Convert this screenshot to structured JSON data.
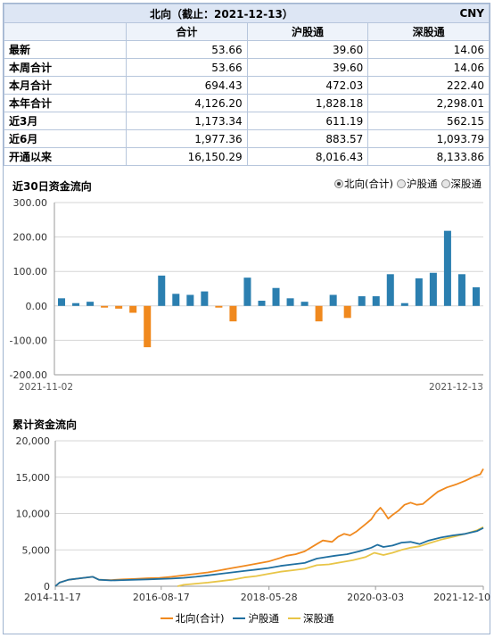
{
  "summary": {
    "title": "北向（截止：2021-12-13）",
    "currency": "CNY",
    "columns": [
      "合计",
      "沪股通",
      "深股通"
    ],
    "rows": [
      {
        "label": "最新",
        "values": [
          "53.66",
          "39.60",
          "14.06"
        ]
      },
      {
        "label": "本周合计",
        "values": [
          "53.66",
          "39.60",
          "14.06"
        ]
      },
      {
        "label": "本月合计",
        "values": [
          "694.43",
          "472.03",
          "222.40"
        ]
      },
      {
        "label": "本年合计",
        "values": [
          "4,126.20",
          "1,828.18",
          "2,298.01"
        ]
      },
      {
        "label": "近3月",
        "values": [
          "1,173.34",
          "611.19",
          "562.15"
        ]
      },
      {
        "label": "近6月",
        "values": [
          "1,977.36",
          "883.57",
          "1,093.79"
        ]
      },
      {
        "label": "开通以来",
        "values": [
          "16,150.29",
          "8,016.43",
          "8,133.86"
        ]
      }
    ]
  },
  "flow30": {
    "title": "近30日资金流向",
    "options": [
      {
        "label": "北向(合计)",
        "selected": true
      },
      {
        "label": "沪股通",
        "selected": false
      },
      {
        "label": "深股通",
        "selected": false
      }
    ]
  },
  "cumulative": {
    "title": "累计资金流向"
  },
  "chart_data": [
    {
      "type": "bar",
      "title": "近30日资金流向",
      "ylim": [
        -200,
        300
      ],
      "yticks": [
        "300.00",
        "200.00",
        "100.00",
        "0.00",
        "-100.00",
        "-200.00"
      ],
      "x_start_label": "2021-11-02",
      "x_end_label": "2021-12-13",
      "colors": {
        "positive": "#2b7fb0",
        "negative": "#f0891e"
      },
      "values": [
        22,
        8,
        12,
        -5,
        -8,
        -20,
        -120,
        88,
        35,
        32,
        42,
        -5,
        -45,
        82,
        15,
        52,
        22,
        12,
        -45,
        32,
        -35,
        28,
        28,
        92,
        8,
        80,
        96,
        218,
        92,
        54
      ]
    },
    {
      "type": "line",
      "title": "累计资金流向",
      "ylim": [
        0,
        20000
      ],
      "yticks": [
        "20,000",
        "15,000",
        "10,000",
        "5,000",
        "0"
      ],
      "xlim": [
        2014.88,
        2021.95
      ],
      "xticks": [
        {
          "label": "2014-11-17",
          "x": 2014.88
        },
        {
          "label": "2016-08-17",
          "x": 2016.63
        },
        {
          "label": "2018-05-28",
          "x": 2018.41
        },
        {
          "label": "2020-03-03",
          "x": 2020.17
        },
        {
          "label": "2021-12-10",
          "x": 2021.95
        }
      ],
      "series": [
        {
          "name": "北向(合计)",
          "color": "#f0891e",
          "points": [
            [
              2014.88,
              0
            ],
            [
              2014.95,
              500
            ],
            [
              2015.1,
              900
            ],
            [
              2015.3,
              1100
            ],
            [
              2015.5,
              1300
            ],
            [
              2015.6,
              900
            ],
            [
              2015.8,
              850
            ],
            [
              2016.0,
              950
            ],
            [
              2016.2,
              1000
            ],
            [
              2016.4,
              1100
            ],
            [
              2016.6,
              1150
            ],
            [
              2016.8,
              1300
            ],
            [
              2017.0,
              1500
            ],
            [
              2017.2,
              1700
            ],
            [
              2017.4,
              1900
            ],
            [
              2017.6,
              2200
            ],
            [
              2017.8,
              2500
            ],
            [
              2018.0,
              2800
            ],
            [
              2018.2,
              3100
            ],
            [
              2018.4,
              3400
            ],
            [
              2018.6,
              3900
            ],
            [
              2018.7,
              4200
            ],
            [
              2018.85,
              4400
            ],
            [
              2019.0,
              4800
            ],
            [
              2019.2,
              5800
            ],
            [
              2019.3,
              6300
            ],
            [
              2019.45,
              6100
            ],
            [
              2019.55,
              6800
            ],
            [
              2019.65,
              7200
            ],
            [
              2019.75,
              7000
            ],
            [
              2019.85,
              7500
            ],
            [
              2020.0,
              8500
            ],
            [
              2020.1,
              9200
            ],
            [
              2020.17,
              10100
            ],
            [
              2020.25,
              10800
            ],
            [
              2020.3,
              10300
            ],
            [
              2020.38,
              9300
            ],
            [
              2020.45,
              9800
            ],
            [
              2020.55,
              10400
            ],
            [
              2020.65,
              11200
            ],
            [
              2020.75,
              11500
            ],
            [
              2020.85,
              11200
            ],
            [
              2020.95,
              11300
            ],
            [
              2021.05,
              12000
            ],
            [
              2021.2,
              13000
            ],
            [
              2021.35,
              13600
            ],
            [
              2021.5,
              14000
            ],
            [
              2021.65,
              14500
            ],
            [
              2021.8,
              15100
            ],
            [
              2021.9,
              15400
            ],
            [
              2021.95,
              16150
            ]
          ]
        },
        {
          "name": "沪股通",
          "color": "#1f6fa0",
          "points": [
            [
              2014.88,
              0
            ],
            [
              2014.95,
              500
            ],
            [
              2015.1,
              900
            ],
            [
              2015.3,
              1100
            ],
            [
              2015.5,
              1300
            ],
            [
              2015.6,
              900
            ],
            [
              2015.8,
              800
            ],
            [
              2016.0,
              850
            ],
            [
              2016.2,
              900
            ],
            [
              2016.4,
              950
            ],
            [
              2016.6,
              1000
            ],
            [
              2016.8,
              1050
            ],
            [
              2017.0,
              1150
            ],
            [
              2017.2,
              1300
            ],
            [
              2017.4,
              1500
            ],
            [
              2017.6,
              1700
            ],
            [
              2017.8,
              1900
            ],
            [
              2018.0,
              2100
            ],
            [
              2018.2,
              2300
            ],
            [
              2018.4,
              2500
            ],
            [
              2018.6,
              2800
            ],
            [
              2018.8,
              3000
            ],
            [
              2019.0,
              3200
            ],
            [
              2019.2,
              3800
            ],
            [
              2019.35,
              4000
            ],
            [
              2019.5,
              4200
            ],
            [
              2019.7,
              4400
            ],
            [
              2019.9,
              4800
            ],
            [
              2020.1,
              5300
            ],
            [
              2020.2,
              5700
            ],
            [
              2020.3,
              5400
            ],
            [
              2020.45,
              5600
            ],
            [
              2020.6,
              6000
            ],
            [
              2020.75,
              6100
            ],
            [
              2020.9,
              5800
            ],
            [
              2021.05,
              6300
            ],
            [
              2021.25,
              6700
            ],
            [
              2021.45,
              7000
            ],
            [
              2021.65,
              7200
            ],
            [
              2021.85,
              7600
            ],
            [
              2021.95,
              8016
            ]
          ]
        },
        {
          "name": "深股通",
          "color": "#e8c547",
          "points": [
            [
              2016.9,
              0
            ],
            [
              2017.0,
              200
            ],
            [
              2017.2,
              350
            ],
            [
              2017.4,
              500
            ],
            [
              2017.6,
              700
            ],
            [
              2017.8,
              900
            ],
            [
              2018.0,
              1200
            ],
            [
              2018.2,
              1400
            ],
            [
              2018.4,
              1700
            ],
            [
              2018.6,
              2000
            ],
            [
              2018.8,
              2200
            ],
            [
              2019.0,
              2400
            ],
            [
              2019.2,
              2900
            ],
            [
              2019.4,
              3000
            ],
            [
              2019.6,
              3300
            ],
            [
              2019.8,
              3600
            ],
            [
              2020.0,
              4000
            ],
            [
              2020.15,
              4600
            ],
            [
              2020.3,
              4300
            ],
            [
              2020.45,
              4600
            ],
            [
              2020.6,
              5000
            ],
            [
              2020.75,
              5300
            ],
            [
              2020.9,
              5500
            ],
            [
              2021.05,
              5900
            ],
            [
              2021.25,
              6400
            ],
            [
              2021.45,
              6800
            ],
            [
              2021.65,
              7200
            ],
            [
              2021.85,
              7700
            ],
            [
              2021.95,
              8134
            ]
          ]
        }
      ]
    }
  ]
}
